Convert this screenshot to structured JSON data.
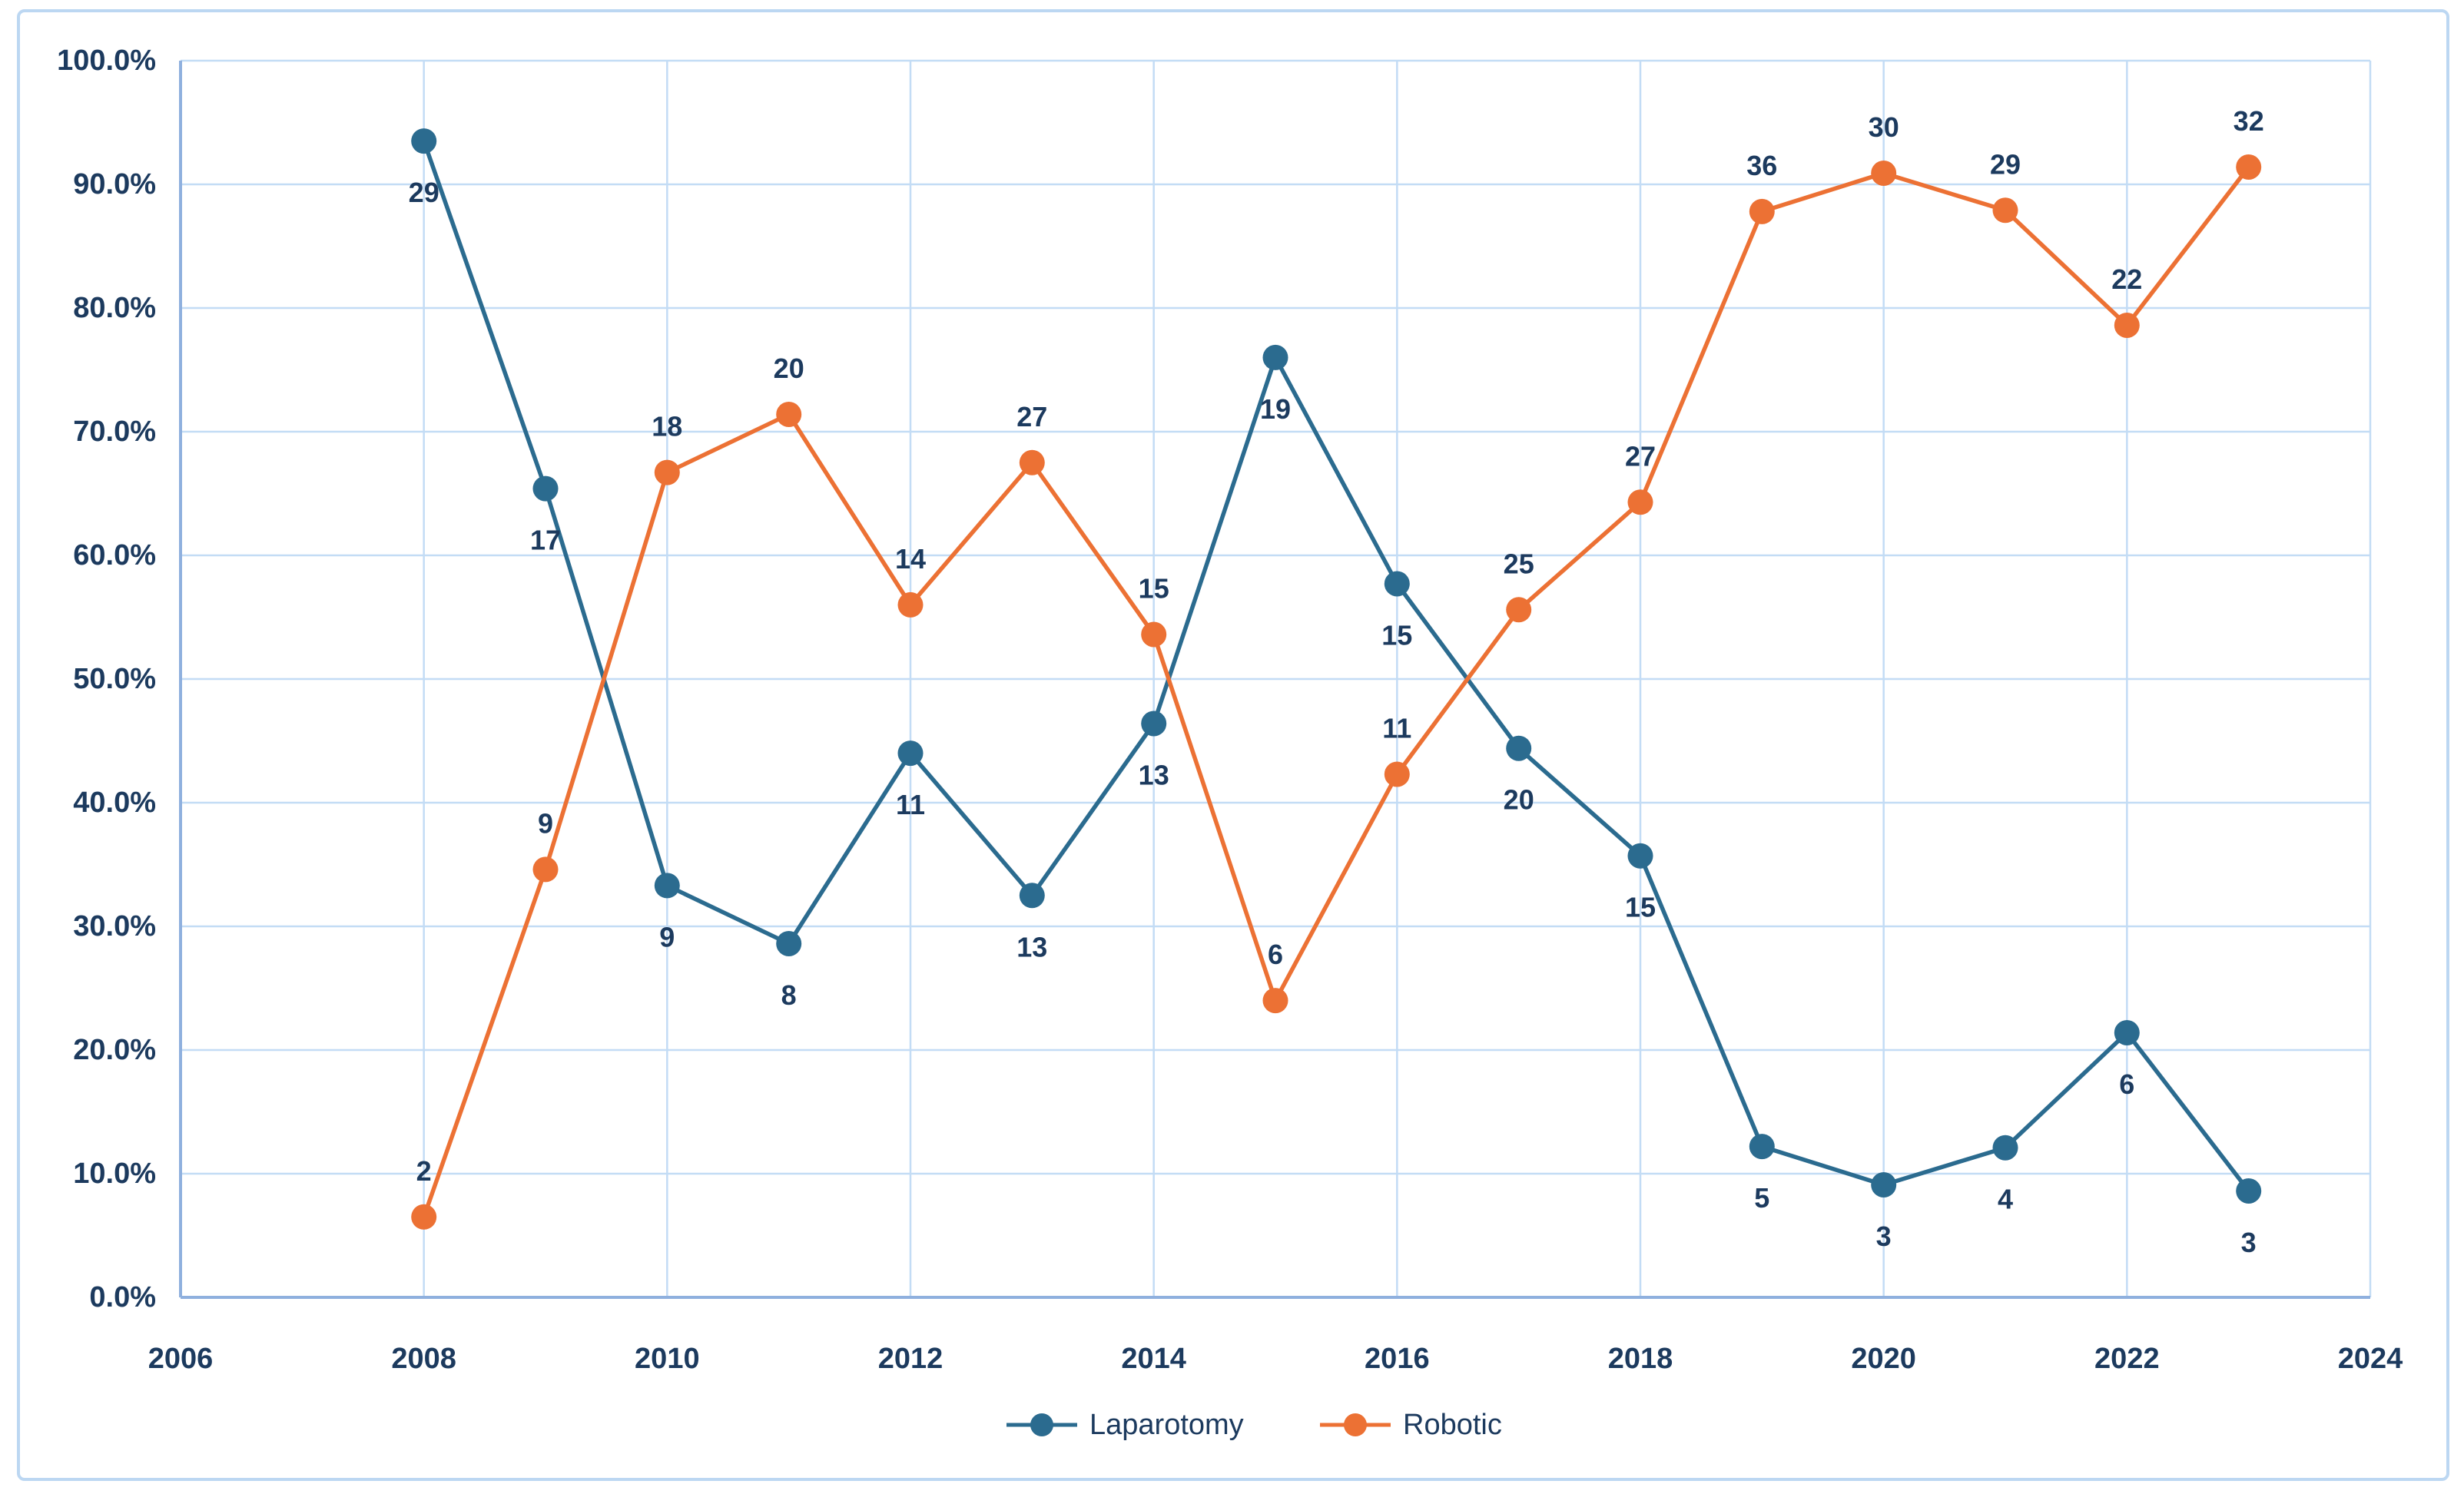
{
  "chart_data": {
    "type": "line",
    "title": "",
    "xlabel": "",
    "ylabel": "",
    "x": [
      2008,
      2009,
      2010,
      2011,
      2012,
      2013,
      2014,
      2015,
      2016,
      2017,
      2018,
      2019,
      2020,
      2021,
      2022,
      2023
    ],
    "series": [
      {
        "name": "Laparotomy",
        "color": "#2B6B8F",
        "counts": [
          29,
          17,
          9,
          8,
          11,
          13,
          13,
          19,
          15,
          20,
          15,
          5,
          3,
          4,
          6,
          3
        ],
        "percent": [
          93.5,
          65.4,
          33.3,
          28.6,
          44.0,
          32.5,
          46.4,
          76.0,
          57.7,
          44.4,
          35.7,
          12.2,
          9.1,
          12.1,
          21.4,
          8.6
        ],
        "label_side": "below"
      },
      {
        "name": "Robotic",
        "color": "#EC7134",
        "counts": [
          2,
          9,
          18,
          20,
          14,
          27,
          15,
          6,
          11,
          25,
          27,
          36,
          30,
          29,
          22,
          32
        ],
        "percent": [
          6.5,
          34.6,
          66.7,
          71.4,
          56.0,
          67.5,
          53.6,
          24.0,
          42.3,
          55.6,
          64.3,
          87.8,
          90.9,
          87.9,
          78.6,
          91.4
        ],
        "label_side": "above"
      }
    ],
    "xlim": [
      2006,
      2024
    ],
    "ylim": [
      0,
      100
    ],
    "x_ticks": [
      2006,
      2008,
      2010,
      2012,
      2014,
      2016,
      2018,
      2020,
      2022,
      2024
    ],
    "y_ticks": [
      {
        "value": 0,
        "label": "0.0%"
      },
      {
        "value": 10,
        "label": "10.0%"
      },
      {
        "value": 20,
        "label": "20.0%"
      },
      {
        "value": 30,
        "label": "30.0%"
      },
      {
        "value": 40,
        "label": "40.0%"
      },
      {
        "value": 50,
        "label": "50.0%"
      },
      {
        "value": 60,
        "label": "60.0%"
      },
      {
        "value": 70,
        "label": "70.0%"
      },
      {
        "value": 80,
        "label": "80.0%"
      },
      {
        "value": 90,
        "label": "90.0%"
      },
      {
        "value": 100,
        "label": "100.0%"
      }
    ],
    "grid": true,
    "data_labels": true,
    "legend_position": "bottom-center"
  },
  "legend": {
    "items": [
      {
        "label": "Laparotomy",
        "color": "#2B6B8F"
      },
      {
        "label": "Robotic",
        "color": "#EC7134"
      }
    ]
  },
  "styles": {
    "background": "#FFFFFF",
    "frame_color": "#BCD7F2",
    "gridline_color": "#C3DCF5",
    "axis_line_color": "#8FB0DE",
    "text_color": "#1C3A5E"
  }
}
